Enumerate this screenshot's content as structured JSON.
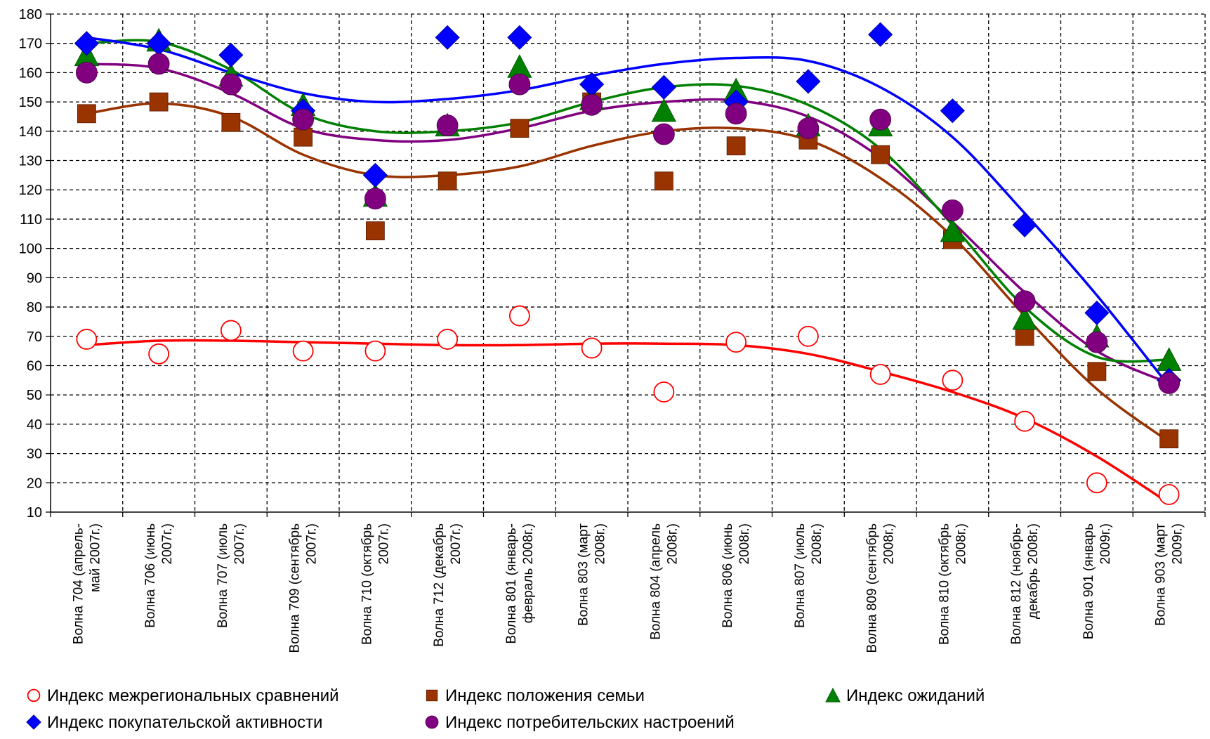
{
  "chart_data": {
    "type": "scatter",
    "title": "",
    "xlabel": "",
    "ylabel": "",
    "ylim": [
      10,
      180
    ],
    "yticks": [
      10,
      20,
      30,
      40,
      50,
      60,
      70,
      80,
      90,
      100,
      110,
      120,
      130,
      140,
      150,
      160,
      170,
      180
    ],
    "grid": true,
    "legend_position": "bottom",
    "categories": [
      [
        "Волна 704 (апрель-",
        "май 2007г.)"
      ],
      [
        "Волна 706 (июнь",
        "2007г.)"
      ],
      [
        "Волна 707 (июль",
        "2007г.)"
      ],
      [
        "Волна 709 (сентябрь",
        "2007г.)"
      ],
      [
        "Волна 710 (октябрь",
        "2007г.)"
      ],
      [
        "Волна 712 (декабрь",
        "2007г.)"
      ],
      [
        "Волна 801 (январь-",
        "февраль 2008г.)"
      ],
      [
        "Волна 803 (март",
        "2008г.)"
      ],
      [
        "Волна 804 (апрель",
        "2008г.)"
      ],
      [
        "Волна 806 (июнь",
        "2008г.)"
      ],
      [
        "Волна 807 (июль",
        "2008г.)"
      ],
      [
        "Волна 809 (сентябрь",
        "2008г.)"
      ],
      [
        "Волна 810 (октябрь",
        "2008г.)"
      ],
      [
        "Волна 812 (ноябрь-",
        "декабрь 2008г.)"
      ],
      [
        "Волна 901 (январь",
        "2009г.)"
      ],
      [
        "Волна 903 (март",
        "2009г.)"
      ]
    ],
    "series": [
      {
        "name": "Индекс межрегиональных сравнений",
        "marker": "circle-open",
        "color": "#ff0000",
        "trend_color": "#ff0000",
        "values": [
          69,
          64,
          72,
          65,
          65,
          69,
          77,
          66,
          51,
          68,
          70,
          57,
          55,
          41,
          20,
          16
        ],
        "trend": [
          67,
          68.5,
          68.5,
          68,
          67.5,
          67,
          67,
          67.5,
          67.5,
          67,
          64,
          58,
          51,
          42,
          29,
          13
        ]
      },
      {
        "name": "Индекс положения семьи",
        "marker": "square",
        "color": "#993300",
        "trend_color": "#993300",
        "values": [
          146,
          150,
          143,
          138,
          106,
          123,
          141,
          150,
          123,
          135,
          137,
          132,
          103,
          70,
          58,
          35
        ],
        "trend": [
          146,
          149.5,
          145,
          132,
          125,
          125,
          128,
          135,
          140,
          141,
          137,
          124,
          104,
          77,
          52,
          34
        ]
      },
      {
        "name": "Индекс ожиданий",
        "marker": "triangle",
        "color": "#008000",
        "trend_color": "#008000",
        "values": [
          166,
          171,
          159,
          149,
          118,
          142,
          162,
          151,
          147,
          154,
          142,
          142,
          106,
          76,
          70,
          62
        ],
        "trend": [
          170,
          170.5,
          161,
          146,
          140,
          140,
          143,
          150,
          155,
          155.5,
          149,
          134,
          108,
          80,
          63,
          62
        ]
      },
      {
        "name": "Индекс покупательской активности",
        "marker": "diamond",
        "color": "#0000ff",
        "trend_color": "#0000ff",
        "values": [
          170,
          170,
          166,
          147,
          125,
          172,
          172,
          156,
          155,
          150,
          157,
          173,
          147,
          108,
          78,
          55
        ],
        "trend": [
          172,
          168,
          160,
          153,
          150,
          151,
          154,
          159,
          163,
          165,
          164,
          155,
          138,
          112,
          84,
          53
        ]
      },
      {
        "name": "Индекс потребительских настроений",
        "marker": "circle",
        "color": "#800080",
        "trend_color": "#800080",
        "values": [
          160,
          163,
          156,
          144,
          117,
          142,
          156,
          149,
          139,
          146,
          141,
          144,
          113,
          82,
          68,
          54
        ],
        "trend": [
          163,
          161.5,
          153,
          141,
          137,
          137,
          141,
          147,
          150,
          150.5,
          145,
          131,
          109,
          85,
          65,
          54
        ]
      }
    ],
    "legend_order": [
      0,
      1,
      2,
      3,
      4
    ]
  }
}
